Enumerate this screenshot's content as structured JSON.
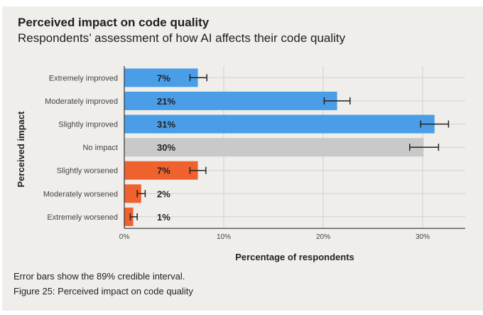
{
  "title": "Perceived impact on code quality",
  "subtitle": "Respondents’ assessment of how AI affects their code quality",
  "footnote": "Error bars show the 89% credible interval.",
  "caption": "Figure 25: Perceived impact on code quality",
  "colors": {
    "improved": "#4a9ee8",
    "neutral": "#c9c9c9",
    "worsened": "#f0622d",
    "background": "#efeeeb"
  },
  "chart_data": {
    "type": "bar",
    "orientation": "horizontal",
    "title": "Perceived impact on code quality",
    "xlabel": "Percentage of respondents",
    "ylabel": "Perceived impact",
    "xlim": [
      0,
      34.3
    ],
    "xticks": [
      "0%",
      "10%",
      "20%",
      "30%"
    ],
    "xtick_values": [
      0,
      10,
      20,
      30
    ],
    "grid": true,
    "categories": [
      "Extremely improved",
      "Moderately improved",
      "Slightly improved",
      "No impact",
      "Slightly worsened",
      "Moderately worsened",
      "Extremely worsened"
    ],
    "values": [
      7.4,
      21.4,
      31.2,
      30.1,
      7.4,
      1.7,
      0.9
    ],
    "labels": [
      "7%",
      "21%",
      "31%",
      "30%",
      "7%",
      "2%",
      "1%"
    ],
    "error_low": [
      6.6,
      20.1,
      29.8,
      28.7,
      6.6,
      1.3,
      0.6
    ],
    "error_high": [
      8.3,
      22.7,
      32.6,
      31.6,
      8.2,
      2.1,
      1.3
    ],
    "groups": [
      "improved",
      "improved",
      "improved",
      "neutral",
      "worsened",
      "worsened",
      "worsened"
    ]
  }
}
